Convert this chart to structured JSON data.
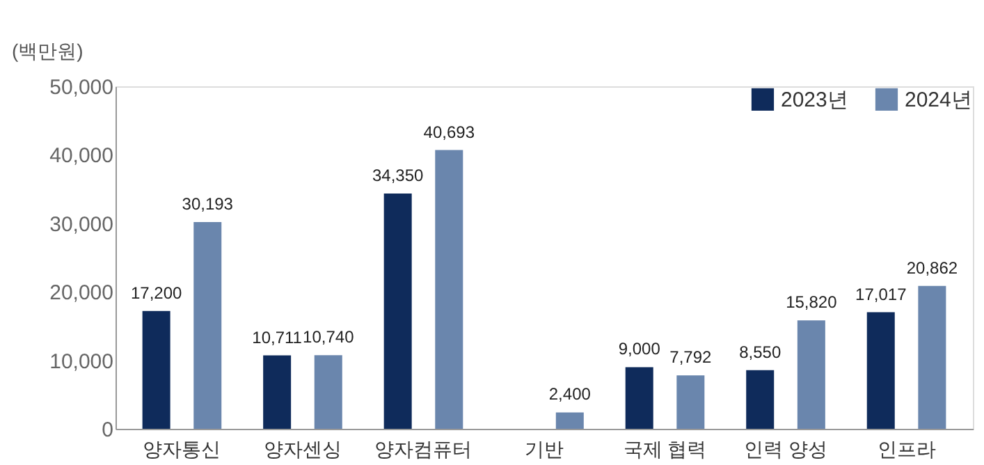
{
  "chart_data": {
    "type": "bar",
    "ylabel": "(백만원)",
    "categories": [
      "양자통신",
      "양자센싱",
      "양자컴퓨터",
      "기반",
      "국제 협력",
      "인력 양성",
      "인프라"
    ],
    "series": [
      {
        "name": "2023년",
        "color": "#0f2b5b",
        "values": [
          17200,
          10711,
          34350,
          null,
          9000,
          8550,
          17017
        ],
        "value_labels": [
          "17,200",
          "10,711",
          "34,350",
          null,
          "9,000",
          "8,550",
          "17,017"
        ]
      },
      {
        "name": "2024년",
        "color": "#6a86ad",
        "values": [
          30193,
          10740,
          40693,
          2400,
          7792,
          15820,
          20862
        ],
        "value_labels": [
          "30,193",
          "10,740",
          "40,693",
          "2,400",
          "7,792",
          "15,820",
          "20,862"
        ]
      }
    ],
    "ylim": [
      0,
      50000
    ],
    "yticks": [
      0,
      {
        "value": 10000,
        "label": "10,000"
      },
      {
        "value": 20000,
        "label": "20,000"
      },
      {
        "value": 30000,
        "label": "30,000"
      },
      {
        "value": 40000,
        "label": "40,000"
      },
      {
        "value": 50000,
        "label": "50,000"
      }
    ],
    "grid": false,
    "legend": "top right"
  }
}
